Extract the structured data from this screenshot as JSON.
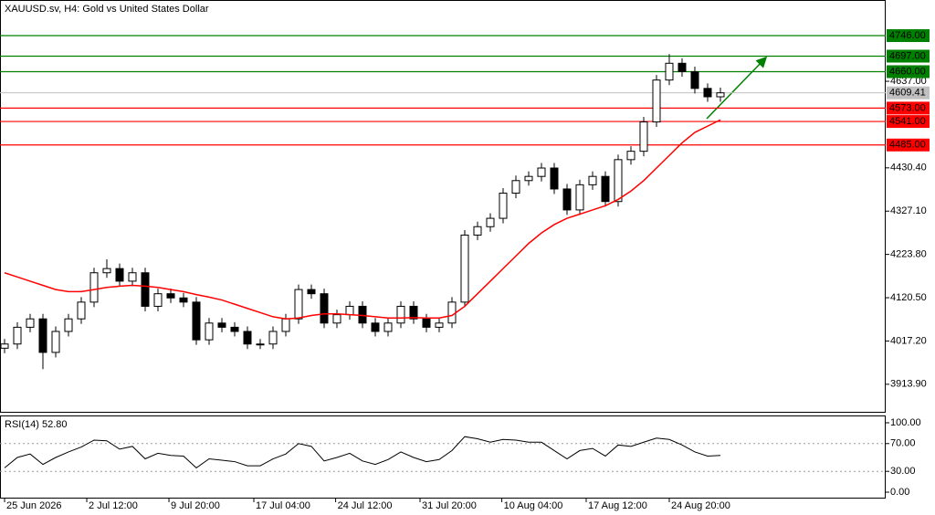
{
  "chart_data": {
    "type": "candlestick",
    "title": "XAUUSD.sv, H4:  Gold vs United States Dollar",
    "open": [
      4000,
      4010,
      4050,
      4070,
      3990,
      4040,
      4070,
      4110,
      4180,
      4190,
      4160,
      4180,
      4100,
      4130,
      4120,
      4110,
      4020,
      4060,
      4050,
      4040,
      4010,
      4010,
      4040,
      4070,
      4140,
      4130,
      4060,
      4080,
      4100,
      4060,
      4040,
      4060,
      4100,
      4070,
      4050,
      4060,
      4110,
      4270,
      4290,
      4310,
      4370,
      4400,
      4410,
      4430,
      4380,
      4330,
      4390,
      4410,
      4350,
      4450,
      4470,
      4540,
      4640,
      4680,
      4660,
      4620,
      4600
    ],
    "high": [
      4022,
      4062,
      4082,
      4082,
      4052,
      4082,
      4122,
      4192,
      4212,
      4202,
      4192,
      4192,
      4142,
      4142,
      4132,
      4122,
      4072,
      4072,
      4062,
      4052,
      4022,
      4052,
      4082,
      4152,
      4152,
      4142,
      4092,
      4112,
      4112,
      4072,
      4072,
      4112,
      4112,
      4082,
      4072,
      4122,
      4282,
      4302,
      4322,
      4382,
      4412,
      4422,
      4442,
      4442,
      4392,
      4402,
      4422,
      4422,
      4462,
      4482,
      4552,
      4652,
      4702,
      4692,
      4672,
      4632,
      4622
    ],
    "low": [
      3988,
      3998,
      4038,
      3950,
      3978,
      4028,
      4058,
      4098,
      4168,
      4148,
      4148,
      4088,
      4088,
      4108,
      4098,
      4008,
      4008,
      4038,
      4028,
      3998,
      3998,
      3998,
      4028,
      4058,
      4118,
      4048,
      4048,
      4068,
      4048,
      4028,
      4028,
      4048,
      4058,
      4038,
      4038,
      4048,
      4098,
      4258,
      4278,
      4298,
      4358,
      4388,
      4398,
      4368,
      4318,
      4318,
      4378,
      4338,
      4338,
      4438,
      4458,
      4528,
      4628,
      4648,
      4608,
      4588,
      4588
    ],
    "close": [
      4010,
      4050,
      4070,
      3990,
      4040,
      4070,
      4110,
      4180,
      4190,
      4160,
      4180,
      4100,
      4130,
      4120,
      4110,
      4020,
      4060,
      4050,
      4040,
      4010,
      4010,
      4040,
      4070,
      4140,
      4130,
      4060,
      4080,
      4100,
      4060,
      4040,
      4060,
      4100,
      4070,
      4050,
      4060,
      4110,
      4270,
      4290,
      4310,
      4370,
      4400,
      4410,
      4430,
      4380,
      4330,
      4390,
      4410,
      4350,
      4450,
      4470,
      4540,
      4640,
      4680,
      4660,
      4620,
      4600,
      4609.41
    ],
    "moving_average": {
      "color": "#ff0000",
      "values": [
        4180,
        4170,
        4160,
        4150,
        4140,
        4135,
        4135,
        4140,
        4145,
        4148,
        4150,
        4148,
        4145,
        4140,
        4135,
        4128,
        4122,
        4115,
        4105,
        4095,
        4085,
        4075,
        4070,
        4072,
        4078,
        4082,
        4082,
        4080,
        4078,
        4075,
        4072,
        4072,
        4073,
        4072,
        4072,
        4078,
        4100,
        4130,
        4160,
        4190,
        4220,
        4250,
        4275,
        4295,
        4310,
        4320,
        4330,
        4340,
        4355,
        4375,
        4400,
        4430,
        4460,
        4490,
        4515,
        4530,
        4545
      ]
    },
    "xlim": [
      -0.357,
      68.93
    ],
    "xticks": [
      {
        "value": 0,
        "label": "25 Jun 2026"
      },
      {
        "value": 6.43,
        "label": "2 Jul 12:00"
      },
      {
        "value": 12.86,
        "label": "9 Jul 20:00"
      },
      {
        "value": 19.5,
        "label": "17 Jul 04:00"
      },
      {
        "value": 25.9,
        "label": "24 Jul 12:00"
      },
      {
        "value": 32.5,
        "label": "31 Jul 20:00"
      },
      {
        "value": 38.9,
        "label": "10 Aug 04:00"
      },
      {
        "value": 45.5,
        "label": "17 Aug 12:00"
      },
      {
        "value": 52,
        "label": "24 Aug 20:00"
      }
    ],
    "ylim": [
      3846,
      4831
    ],
    "yticks": [
      {
        "value": 4637,
        "label": "4637.00"
      },
      {
        "value": 4430.4,
        "label": "4430.40"
      },
      {
        "value": 4327.1,
        "label": "4327.10"
      },
      {
        "value": 4223.8,
        "label": "4223.80"
      },
      {
        "value": 4120.5,
        "label": "4120.50"
      },
      {
        "value": 4017.2,
        "label": "4017.20"
      },
      {
        "value": 3913.9,
        "label": "3913.90"
      }
    ],
    "levels": [
      {
        "value": 4746,
        "label": "4746.00",
        "color": "#008000"
      },
      {
        "value": 4697,
        "label": "4697.00",
        "color": "#008000"
      },
      {
        "value": 4660,
        "label": "4660.00",
        "color": "#008000"
      },
      {
        "value": 4573,
        "label": "4573.00",
        "color": "#ff0000"
      },
      {
        "value": 4541,
        "label": "4541.00",
        "color": "#ff0000"
      },
      {
        "value": 4485,
        "label": "4485.00",
        "color": "#ff0000"
      }
    ],
    "current_price": 4609.41,
    "rsi": {
      "title": "RSI(14) 52.80",
      "values": [
        35,
        50,
        55,
        40,
        50,
        58,
        65,
        75,
        74,
        62,
        66,
        48,
        56,
        53,
        52,
        35,
        48,
        46,
        44,
        38,
        38,
        48,
        55,
        70,
        66,
        45,
        50,
        56,
        45,
        40,
        47,
        58,
        50,
        44,
        47,
        60,
        80,
        77,
        72,
        76,
        75,
        72,
        72,
        60,
        48,
        60,
        63,
        52,
        68,
        66,
        72,
        78,
        76,
        68,
        58,
        52,
        53
      ],
      "ylim": [
        -9.2,
        109.2
      ],
      "yticks": [
        {
          "value": 100,
          "label": "100.00"
        },
        {
          "value": 70,
          "label": "70.00"
        },
        {
          "value": 30,
          "label": "30.00"
        },
        {
          "value": 0,
          "label": "0.00"
        }
      ],
      "dashed_levels": [
        70,
        30
      ]
    }
  }
}
